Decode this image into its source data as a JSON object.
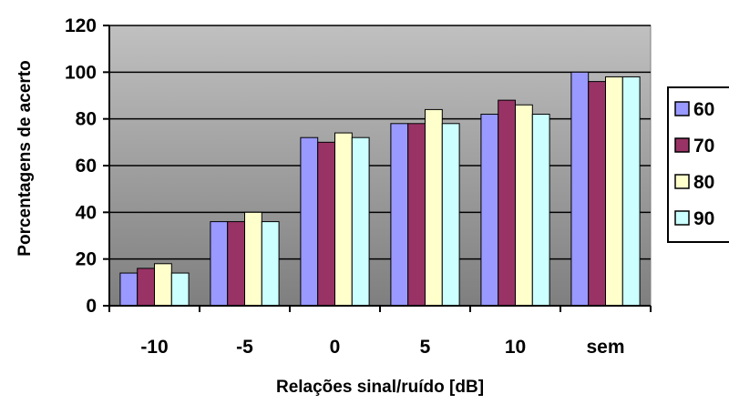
{
  "colors": {
    "plot_gradient_top": "#c0c0c0",
    "plot_gradient_bottom": "#7f7f7f",
    "gridline": "#000000",
    "axis": "#000000",
    "bar_outline": "#000000",
    "background": "#ffffff"
  },
  "chart_data": {
    "type": "bar",
    "title": "",
    "xlabel": "Relações sinal/ruído [dB]",
    "ylabel": "Porcentagens de acerto",
    "categories": [
      "-10",
      "-5",
      "0",
      "5",
      "10",
      "sem"
    ],
    "ylim": [
      0,
      120
    ],
    "yticks": [
      0,
      20,
      40,
      60,
      80,
      100,
      120
    ],
    "grid": true,
    "legend_position": "right",
    "series": [
      {
        "name": "60",
        "color": "#9999ff",
        "values": [
          14,
          36,
          72,
          78,
          82,
          100
        ]
      },
      {
        "name": "70",
        "color": "#993366",
        "values": [
          16,
          36,
          70,
          78,
          88,
          96
        ]
      },
      {
        "name": "80",
        "color": "#ffffcc",
        "values": [
          18,
          40,
          74,
          84,
          86,
          98
        ]
      },
      {
        "name": "90",
        "color": "#ccffff",
        "values": [
          14,
          36,
          72,
          78,
          82,
          98
        ]
      }
    ]
  }
}
